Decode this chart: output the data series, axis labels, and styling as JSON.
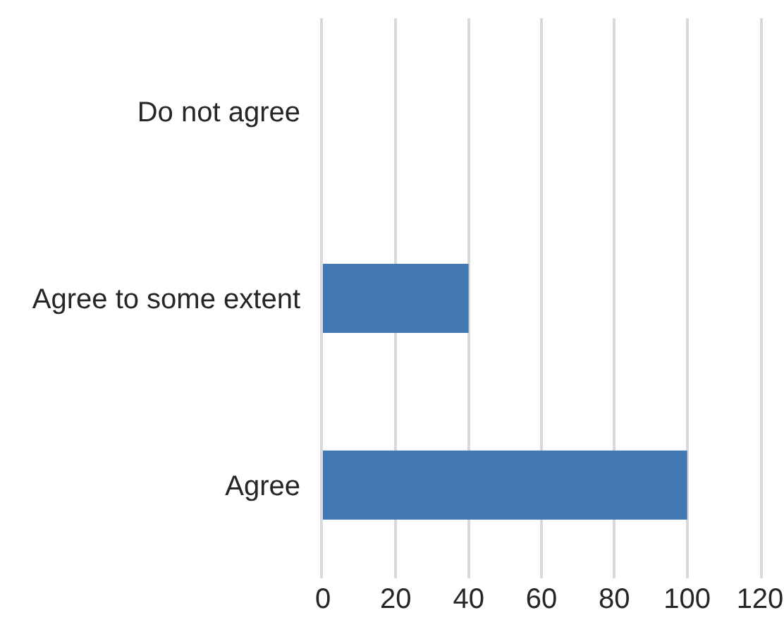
{
  "chart_data": {
    "type": "bar",
    "orientation": "horizontal",
    "categories": [
      "Do not agree",
      "Agree to some extent",
      "Agree"
    ],
    "values": [
      0,
      40,
      100
    ],
    "color": "#4279b5",
    "xlim": [
      0,
      120
    ],
    "xticks": [
      0,
      20,
      40,
      60,
      80,
      100,
      120
    ],
    "grid": "x"
  }
}
